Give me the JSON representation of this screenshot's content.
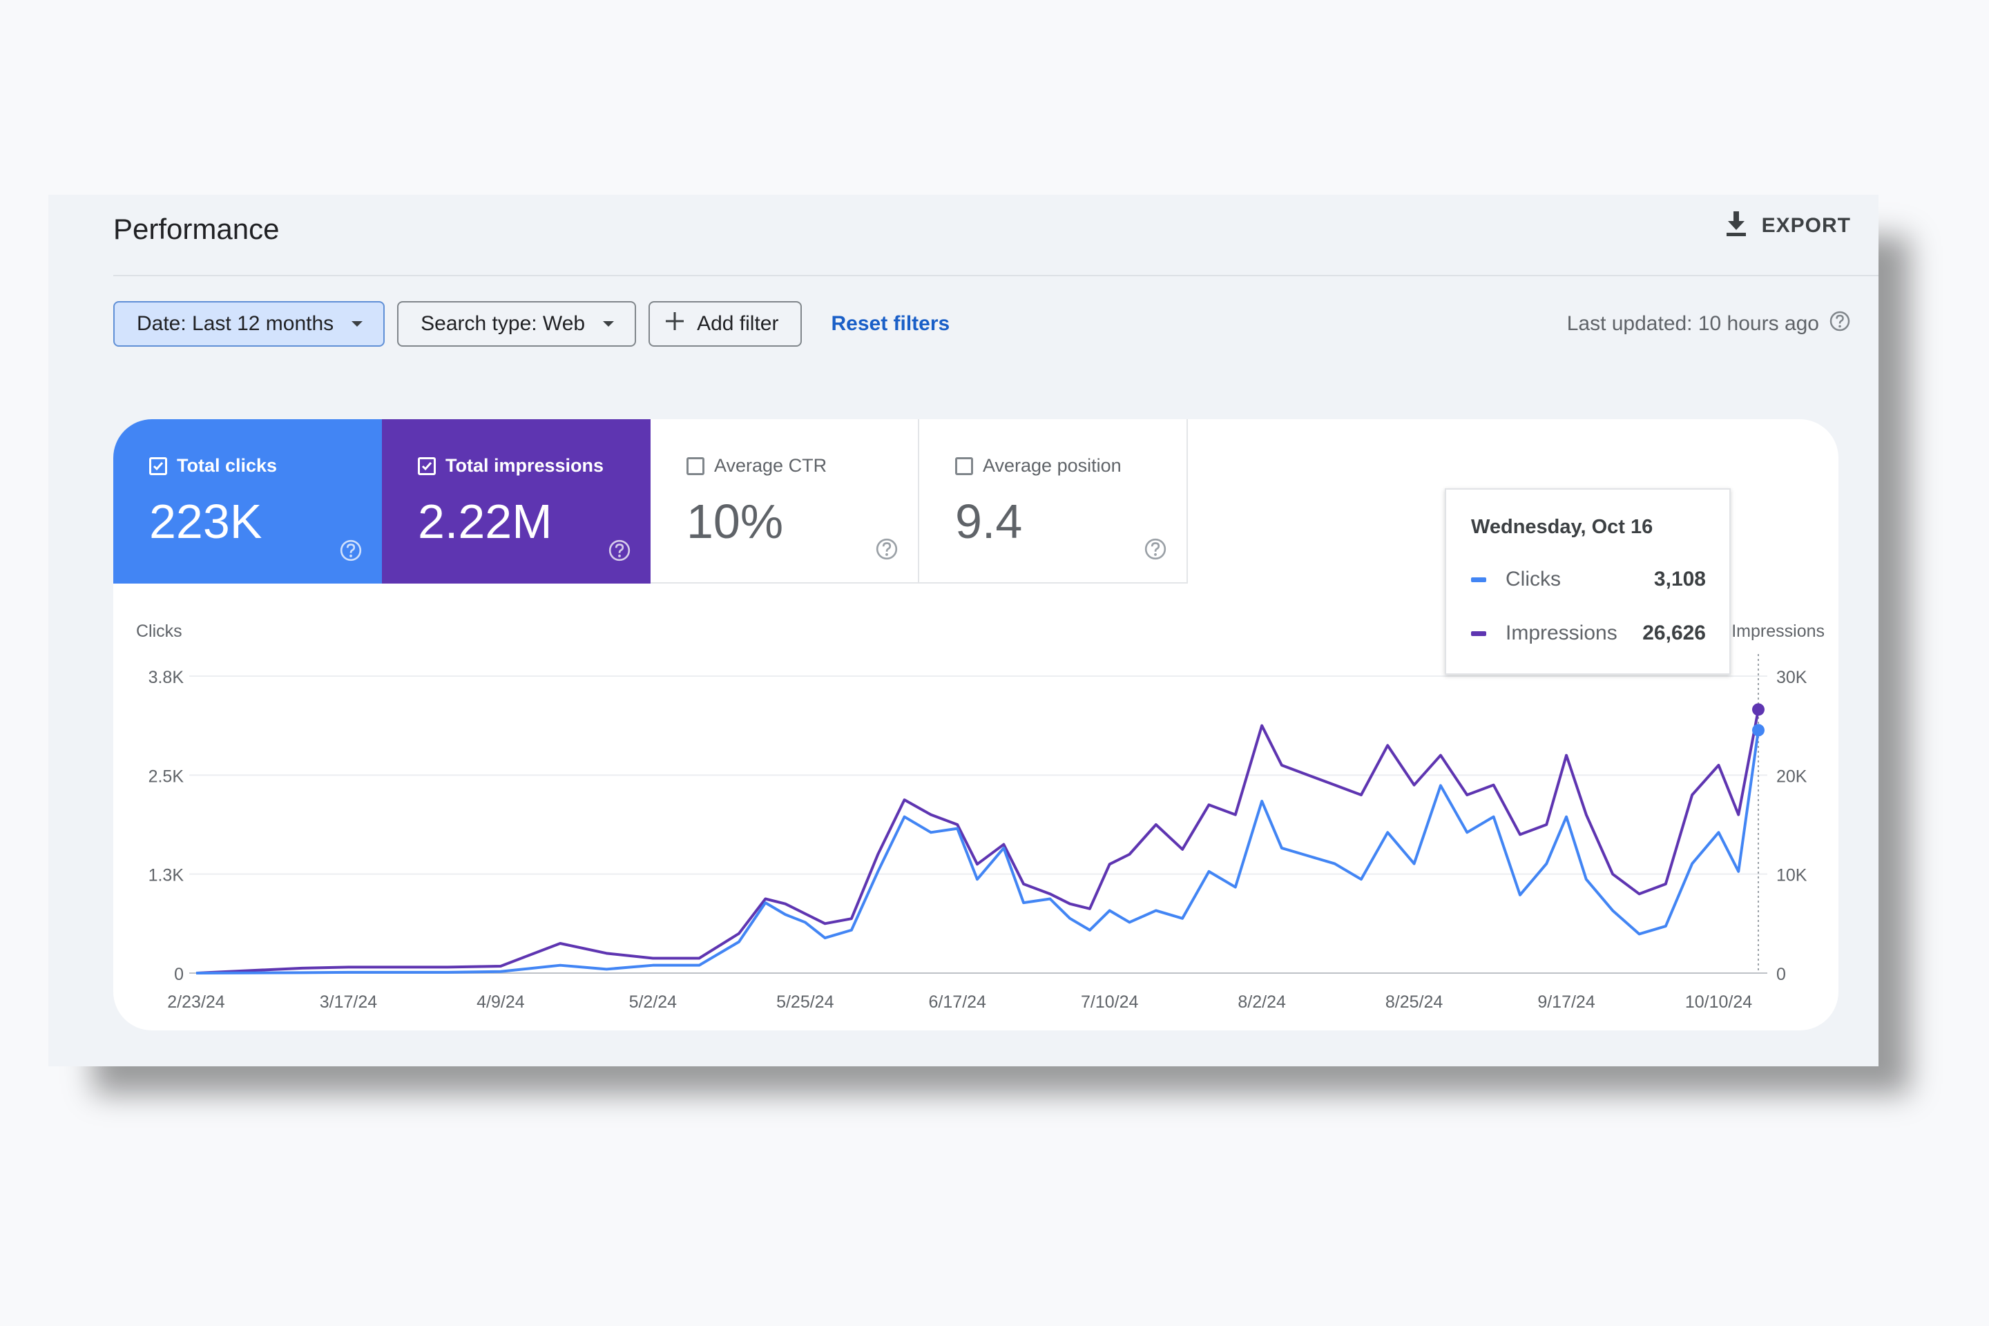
{
  "header": {
    "title": "Performance",
    "export_label": "EXPORT"
  },
  "filters": {
    "date_label": "Date: Last 12 months",
    "search_type_label": "Search type: Web",
    "add_filter_label": "Add filter",
    "reset_label": "Reset filters",
    "last_updated": "Last updated: 10 hours ago"
  },
  "metrics": [
    {
      "label": "Total clicks",
      "value": "223K",
      "checked": true
    },
    {
      "label": "Total impressions",
      "value": "2.22M",
      "checked": true
    },
    {
      "label": "Average CTR",
      "value": "10%",
      "checked": false
    },
    {
      "label": "Average position",
      "value": "9.4",
      "checked": false
    }
  ],
  "tooltip": {
    "date": "Wednesday, Oct 16",
    "rows": [
      {
        "label": "Clicks",
        "value": "3,108"
      },
      {
        "label": "Impressions",
        "value": "26,626"
      }
    ]
  },
  "colors": {
    "clicks": "#4285f4",
    "impressions": "#5e35b1",
    "active_chip": "#d3e3fd",
    "link": "#1a5fc7"
  },
  "icons": {
    "export": "download-icon",
    "help": "help-circle-icon",
    "add": "plus-icon",
    "caret": "caret-down-icon",
    "checkbox": "checkbox-icon"
  },
  "chart_data": {
    "type": "line",
    "ylabel": "Clicks",
    "y2label": "Impressions",
    "ylim": [
      0,
      3800
    ],
    "y2lim": [
      0,
      30000
    ],
    "y_ticks": [
      "0",
      "1.3K",
      "2.5K",
      "3.8K"
    ],
    "y2_ticks": [
      "0",
      "10K",
      "20K",
      "30K"
    ],
    "x_ticks": [
      "2/23/24",
      "3/17/24",
      "4/9/24",
      "5/2/24",
      "5/25/24",
      "6/17/24",
      "7/10/24",
      "8/2/24",
      "8/25/24",
      "9/17/24",
      "10/10/24"
    ],
    "grid": true,
    "series": [
      {
        "name": "Clicks",
        "axis": "left",
        "x": [
          "2024-02-23",
          "2024-03-10",
          "2024-03-17",
          "2024-04-01",
          "2024-04-09",
          "2024-04-18",
          "2024-04-25",
          "2024-05-02",
          "2024-05-09",
          "2024-05-15",
          "2024-05-19",
          "2024-05-22",
          "2024-05-25",
          "2024-05-28",
          "2024-06-01",
          "2024-06-05",
          "2024-06-09",
          "2024-06-13",
          "2024-06-17",
          "2024-06-20",
          "2024-06-24",
          "2024-06-27",
          "2024-07-01",
          "2024-07-04",
          "2024-07-07",
          "2024-07-10",
          "2024-07-13",
          "2024-07-17",
          "2024-07-21",
          "2024-07-25",
          "2024-07-29",
          "2024-08-02",
          "2024-08-05",
          "2024-08-09",
          "2024-08-13",
          "2024-08-17",
          "2024-08-21",
          "2024-08-25",
          "2024-08-29",
          "2024-09-02",
          "2024-09-06",
          "2024-09-10",
          "2024-09-14",
          "2024-09-17",
          "2024-09-20",
          "2024-09-24",
          "2024-09-28",
          "2024-10-02",
          "2024-10-06",
          "2024-10-10",
          "2024-10-13",
          "2024-10-16"
        ],
        "y": [
          0,
          5,
          10,
          10,
          20,
          100,
          50,
          100,
          100,
          400,
          900,
          750,
          650,
          450,
          550,
          1300,
          2000,
          1800,
          1850,
          1200,
          1600,
          900,
          950,
          700,
          550,
          800,
          650,
          800,
          700,
          1300,
          1100,
          2200,
          1600,
          1500,
          1400,
          1200,
          1800,
          1400,
          2400,
          1800,
          2000,
          1000,
          1400,
          2000,
          1200,
          800,
          500,
          600,
          1400,
          1800,
          1300,
          3108
        ]
      },
      {
        "name": "Impressions",
        "axis": "right",
        "x": [
          "2024-02-23",
          "2024-03-10",
          "2024-03-17",
          "2024-04-01",
          "2024-04-09",
          "2024-04-18",
          "2024-04-25",
          "2024-05-02",
          "2024-05-09",
          "2024-05-15",
          "2024-05-19",
          "2024-05-22",
          "2024-05-25",
          "2024-05-28",
          "2024-06-01",
          "2024-06-05",
          "2024-06-09",
          "2024-06-13",
          "2024-06-17",
          "2024-06-20",
          "2024-06-24",
          "2024-06-27",
          "2024-07-01",
          "2024-07-04",
          "2024-07-07",
          "2024-07-10",
          "2024-07-13",
          "2024-07-17",
          "2024-07-21",
          "2024-07-25",
          "2024-07-29",
          "2024-08-02",
          "2024-08-05",
          "2024-08-09",
          "2024-08-13",
          "2024-08-17",
          "2024-08-21",
          "2024-08-25",
          "2024-08-29",
          "2024-09-02",
          "2024-09-06",
          "2024-09-10",
          "2024-09-14",
          "2024-09-17",
          "2024-09-20",
          "2024-09-24",
          "2024-09-28",
          "2024-10-02",
          "2024-10-06",
          "2024-10-10",
          "2024-10-13",
          "2024-10-16"
        ],
        "y": [
          0,
          500,
          600,
          600,
          700,
          3000,
          2000,
          1500,
          1500,
          4000,
          7500,
          7000,
          6000,
          5000,
          5500,
          12000,
          17500,
          16000,
          15000,
          11000,
          13000,
          9000,
          8000,
          7000,
          6500,
          11000,
          12000,
          15000,
          12500,
          17000,
          16000,
          25000,
          21000,
          20000,
          19000,
          18000,
          23000,
          19000,
          22000,
          18000,
          19000,
          14000,
          15000,
          22000,
          16000,
          10000,
          8000,
          9000,
          18000,
          21000,
          16000,
          26626
        ]
      }
    ]
  }
}
